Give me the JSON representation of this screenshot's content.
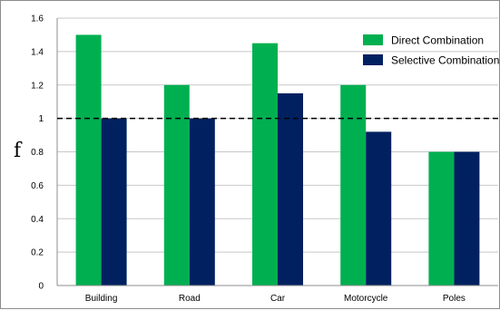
{
  "chart_data": {
    "type": "bar",
    "title": "",
    "xlabel": "",
    "ylabel": "f",
    "categories": [
      "Building",
      "Road",
      "Car",
      "Motorcycle",
      "Poles"
    ],
    "series": [
      {
        "name": "Direct Combination",
        "values": [
          1.5,
          1.2,
          1.45,
          1.2,
          0.8
        ],
        "color": "#00b050"
      },
      {
        "name": "Selective Combination",
        "values": [
          1.0,
          1.0,
          1.15,
          0.92,
          0.8
        ],
        "color": "#002060"
      }
    ],
    "ylim": [
      0,
      1.6
    ],
    "yticks": [
      "0",
      "0.2",
      "0.4",
      "0.6",
      "0.8",
      "1",
      "1.2",
      "1.4",
      "1.6"
    ],
    "reference_line": {
      "value": 1.0,
      "style": "dashed",
      "color": "#000000"
    },
    "grid": true,
    "legend_position": "top-right"
  }
}
